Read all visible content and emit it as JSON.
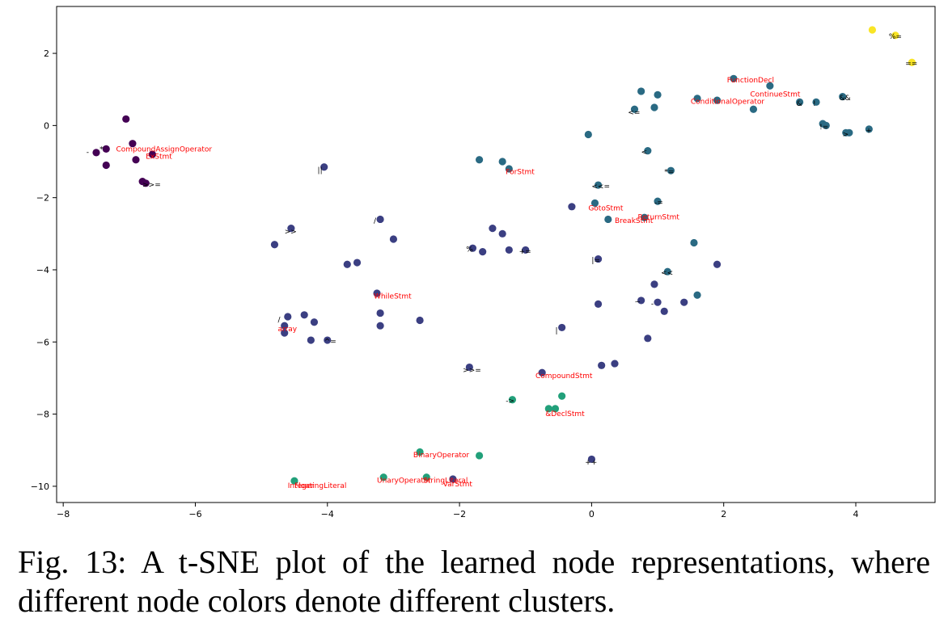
{
  "caption": "Fig. 13: A t-SNE plot of the learned node representations, where different node colors denote different clusters.",
  "colors": {
    "purple": "#440154",
    "indigo": "#3b3f82",
    "teal": "#2a6a83",
    "green": "#22a07a",
    "yellow": "#f9e526",
    "label_red": "#ff0000",
    "label_black": "#000000"
  },
  "chart_data": {
    "type": "scatter",
    "title": "",
    "xlabel": "",
    "ylabel": "",
    "xlim": [
      -8.1,
      5.2
    ],
    "ylim": [
      -10.45,
      3.3
    ],
    "xticks": [
      -8,
      -6,
      -4,
      -2,
      0,
      2,
      4
    ],
    "yticks": [
      -10,
      -8,
      -6,
      -4,
      -2,
      0,
      2
    ],
    "grid": false,
    "legend": "none",
    "points": [
      {
        "x": -7.05,
        "y": 0.18,
        "c": "purple"
      },
      {
        "x": -6.95,
        "y": -0.5,
        "c": "purple"
      },
      {
        "x": -7.5,
        "y": -0.75,
        "c": "purple"
      },
      {
        "x": -7.35,
        "y": -0.65,
        "c": "purple"
      },
      {
        "x": -7.35,
        "y": -1.1,
        "c": "purple"
      },
      {
        "x": -6.9,
        "y": -0.95,
        "c": "purple"
      },
      {
        "x": -6.65,
        "y": -0.8,
        "c": "purple"
      },
      {
        "x": -6.8,
        "y": -1.55,
        "c": "purple"
      },
      {
        "x": -6.75,
        "y": -1.6,
        "c": "purple"
      },
      {
        "x": -4.05,
        "y": -1.15,
        "c": "indigo"
      },
      {
        "x": -4.55,
        "y": -2.85,
        "c": "indigo"
      },
      {
        "x": -4.8,
        "y": -3.3,
        "c": "indigo"
      },
      {
        "x": -3.2,
        "y": -2.6,
        "c": "indigo"
      },
      {
        "x": -3.0,
        "y": -3.15,
        "c": "indigo"
      },
      {
        "x": -3.7,
        "y": -3.85,
        "c": "indigo"
      },
      {
        "x": -3.55,
        "y": -3.8,
        "c": "indigo"
      },
      {
        "x": -3.25,
        "y": -4.65,
        "c": "indigo"
      },
      {
        "x": -3.2,
        "y": -5.2,
        "c": "indigo"
      },
      {
        "x": -3.2,
        "y": -5.55,
        "c": "indigo"
      },
      {
        "x": -4.6,
        "y": -5.3,
        "c": "indigo"
      },
      {
        "x": -4.65,
        "y": -5.55,
        "c": "indigo"
      },
      {
        "x": -4.65,
        "y": -5.75,
        "c": "indigo"
      },
      {
        "x": -4.35,
        "y": -5.25,
        "c": "indigo"
      },
      {
        "x": -4.2,
        "y": -5.45,
        "c": "indigo"
      },
      {
        "x": -4.25,
        "y": -5.95,
        "c": "indigo"
      },
      {
        "x": -4.0,
        "y": -5.95,
        "c": "indigo"
      },
      {
        "x": -2.6,
        "y": -5.4,
        "c": "indigo"
      },
      {
        "x": -1.8,
        "y": -3.4,
        "c": "indigo"
      },
      {
        "x": -1.65,
        "y": -3.5,
        "c": "indigo"
      },
      {
        "x": -1.5,
        "y": -2.85,
        "c": "indigo"
      },
      {
        "x": -1.35,
        "y": -3.0,
        "c": "indigo"
      },
      {
        "x": -1.25,
        "y": -3.45,
        "c": "indigo"
      },
      {
        "x": -1.0,
        "y": -3.45,
        "c": "indigo"
      },
      {
        "x": -0.3,
        "y": -2.25,
        "c": "indigo"
      },
      {
        "x": 0.1,
        "y": -3.7,
        "c": "indigo"
      },
      {
        "x": 0.1,
        "y": -4.95,
        "c": "indigo"
      },
      {
        "x": -0.45,
        "y": -5.6,
        "c": "indigo"
      },
      {
        "x": 0.75,
        "y": -4.85,
        "c": "indigo"
      },
      {
        "x": 0.95,
        "y": -4.4,
        "c": "indigo"
      },
      {
        "x": 1.0,
        "y": -4.9,
        "c": "indigo"
      },
      {
        "x": 1.1,
        "y": -5.15,
        "c": "indigo"
      },
      {
        "x": 1.4,
        "y": -4.9,
        "c": "indigo"
      },
      {
        "x": 1.9,
        "y": -3.85,
        "c": "indigo"
      },
      {
        "x": 0.85,
        "y": -5.9,
        "c": "indigo"
      },
      {
        "x": 0.15,
        "y": -6.65,
        "c": "indigo"
      },
      {
        "x": 0.35,
        "y": -6.6,
        "c": "indigo"
      },
      {
        "x": -0.75,
        "y": -6.85,
        "c": "indigo"
      },
      {
        "x": -1.85,
        "y": -6.7,
        "c": "indigo"
      },
      {
        "x": 0.0,
        "y": -9.25,
        "c": "indigo"
      },
      {
        "x": -2.1,
        "y": -9.8,
        "c": "indigo"
      },
      {
        "x": -0.05,
        "y": -0.25,
        "c": "teal"
      },
      {
        "x": -1.7,
        "y": -0.95,
        "c": "teal"
      },
      {
        "x": -1.35,
        "y": -1.0,
        "c": "teal"
      },
      {
        "x": -1.25,
        "y": -1.2,
        "c": "teal"
      },
      {
        "x": 0.1,
        "y": -1.65,
        "c": "teal"
      },
      {
        "x": 0.05,
        "y": -2.15,
        "c": "teal"
      },
      {
        "x": 0.25,
        "y": -2.6,
        "c": "teal"
      },
      {
        "x": 0.8,
        "y": -2.55,
        "c": "teal"
      },
      {
        "x": 1.0,
        "y": -2.1,
        "c": "teal"
      },
      {
        "x": 0.85,
        "y": -0.7,
        "c": "teal"
      },
      {
        "x": 1.2,
        "y": -1.25,
        "c": "teal"
      },
      {
        "x": 1.55,
        "y": -3.25,
        "c": "teal"
      },
      {
        "x": 1.15,
        "y": -4.05,
        "c": "teal"
      },
      {
        "x": 1.6,
        "y": -4.7,
        "c": "teal"
      },
      {
        "x": 0.65,
        "y": 0.45,
        "c": "teal"
      },
      {
        "x": 0.75,
        "y": 0.95,
        "c": "teal"
      },
      {
        "x": 0.95,
        "y": 0.5,
        "c": "teal"
      },
      {
        "x": 1.0,
        "y": 0.85,
        "c": "teal"
      },
      {
        "x": 1.6,
        "y": 0.75,
        "c": "teal"
      },
      {
        "x": 1.9,
        "y": 0.7,
        "c": "teal"
      },
      {
        "x": 2.15,
        "y": 1.3,
        "c": "teal"
      },
      {
        "x": 2.7,
        "y": 1.1,
        "c": "teal"
      },
      {
        "x": 2.45,
        "y": 0.45,
        "c": "teal"
      },
      {
        "x": 3.15,
        "y": 0.65,
        "c": "teal"
      },
      {
        "x": 3.4,
        "y": 0.65,
        "c": "teal"
      },
      {
        "x": 3.8,
        "y": 0.8,
        "c": "teal"
      },
      {
        "x": 3.5,
        "y": 0.05,
        "c": "teal"
      },
      {
        "x": 3.55,
        "y": 0.0,
        "c": "teal"
      },
      {
        "x": 3.85,
        "y": -0.2,
        "c": "teal"
      },
      {
        "x": 3.9,
        "y": -0.2,
        "c": "teal"
      },
      {
        "x": 4.2,
        "y": -0.1,
        "c": "teal"
      },
      {
        "x": -2.6,
        "y": -9.05,
        "c": "green"
      },
      {
        "x": -1.7,
        "y": -9.15,
        "c": "green"
      },
      {
        "x": -2.5,
        "y": -9.75,
        "c": "green"
      },
      {
        "x": -3.15,
        "y": -9.75,
        "c": "green"
      },
      {
        "x": -4.5,
        "y": -9.85,
        "c": "green"
      },
      {
        "x": -1.2,
        "y": -7.6,
        "c": "green"
      },
      {
        "x": -0.65,
        "y": -7.85,
        "c": "green"
      },
      {
        "x": -0.55,
        "y": -7.85,
        "c": "green"
      },
      {
        "x": -0.45,
        "y": -7.5,
        "c": "green"
      },
      {
        "x": 4.25,
        "y": 2.65,
        "c": "yellow"
      },
      {
        "x": 4.6,
        "y": 2.5,
        "c": "yellow"
      },
      {
        "x": 4.85,
        "y": 1.75,
        "c": "yellow"
      }
    ],
    "annotations": [
      {
        "text": "CompoundAssignOperator",
        "x": -7.2,
        "y": -0.72,
        "color": "red",
        "size": 9
      },
      {
        "text": "ExStmt",
        "x": -6.75,
        "y": -0.92,
        "color": "red",
        "size": 9
      },
      {
        "text": "-",
        "x": -7.65,
        "y": -0.8,
        "color": "black",
        "size": 9
      },
      {
        "text": "*",
        "x": -7.45,
        "y": -0.72,
        "color": "black",
        "size": 9
      },
      {
        "text": ">>=",
        "x": -6.8,
        "y": -1.7,
        "color": "black",
        "size": 9
      },
      {
        "text": "||",
        "x": -4.15,
        "y": -1.3,
        "color": "black",
        "size": 9
      },
      {
        "text": ">>",
        "x": -4.65,
        "y": -3.0,
        "color": "black",
        "size": 9
      },
      {
        "text": "/",
        "x": -3.3,
        "y": -2.7,
        "color": "black",
        "size": 9
      },
      {
        "text": "WhileStmt",
        "x": -3.3,
        "y": -4.8,
        "color": "red",
        "size": 9
      },
      {
        "text": "/",
        "x": -4.75,
        "y": -5.45,
        "color": "black",
        "size": 9
      },
      {
        "text": "array",
        "x": -4.75,
        "y": -5.7,
        "color": "red",
        "size": 9
      },
      {
        "text": "^=",
        "x": -4.05,
        "y": -6.05,
        "color": "black",
        "size": 9
      },
      {
        "text": "%",
        "x": -1.9,
        "y": -3.5,
        "color": "black",
        "size": 9
      },
      {
        "text": "+=",
        "x": -1.1,
        "y": -3.55,
        "color": "black",
        "size": 9
      },
      {
        "text": "ForStmt",
        "x": -1.3,
        "y": -1.35,
        "color": "red",
        "size": 9
      },
      {
        "text": "<<=",
        "x": 0.0,
        "y": -1.75,
        "color": "black",
        "size": 9
      },
      {
        "text": "GotoStmt",
        "x": -0.05,
        "y": -2.35,
        "color": "red",
        "size": 9
      },
      {
        "text": "BreakStmt",
        "x": 0.35,
        "y": -2.7,
        "color": "red",
        "size": 9
      },
      {
        "text": "ReturnStmt",
        "x": 0.7,
        "y": -2.6,
        "color": "red",
        "size": 12
      },
      {
        "text": "-=",
        "x": 0.95,
        "y": -2.2,
        "color": "black",
        "size": 9
      },
      {
        "text": "<",
        "x": 0.75,
        "y": -0.8,
        "color": "black",
        "size": 9
      },
      {
        "text": "*=",
        "x": 1.1,
        "y": -1.35,
        "color": "black",
        "size": 9
      },
      {
        "text": "|=",
        "x": 0.0,
        "y": -3.8,
        "color": "black",
        "size": 9
      },
      {
        "text": "<<",
        "x": 1.05,
        "y": -4.15,
        "color": "black",
        "size": 9
      },
      {
        "text": "~",
        "x": 0.65,
        "y": -4.95,
        "color": "black",
        "size": 9
      },
      {
        "text": "-",
        "x": 0.9,
        "y": -5.0,
        "color": "black",
        "size": 9
      },
      {
        "text": "|",
        "x": -0.55,
        "y": -5.75,
        "color": "black",
        "size": 9
      },
      {
        "text": ">>=",
        "x": -1.95,
        "y": -6.85,
        "color": "black",
        "size": 9
      },
      {
        "text": "CompoundStmt",
        "x": -0.85,
        "y": -7.0,
        "color": "red",
        "size": 9
      },
      {
        "text": "->",
        "x": -1.3,
        "y": -7.7,
        "color": "black",
        "size": 9
      },
      {
        "text": "&DeclStmt",
        "x": -0.7,
        "y": -8.05,
        "color": "red",
        "size": 9
      },
      {
        "text": "BinaryOperator",
        "x": -2.7,
        "y": -9.2,
        "color": "red",
        "size": 9
      },
      {
        "text": "UnaryOperator",
        "x": -3.25,
        "y": -9.9,
        "color": "red",
        "size": 9
      },
      {
        "text": "StringLiteral",
        "x": -2.55,
        "y": -9.9,
        "color": "red",
        "size": 9
      },
      {
        "text": "VarStmt",
        "x": -2.25,
        "y": -10.0,
        "color": "red",
        "size": 9
      },
      {
        "text": "Integer",
        "x": -4.6,
        "y": -10.05,
        "color": "red",
        "size": 9
      },
      {
        "text": "FloatingLiteral",
        "x": -4.5,
        "y": -10.05,
        "color": "red",
        "size": 9
      },
      {
        "text": "++",
        "x": -0.1,
        "y": -9.4,
        "color": "black",
        "size": 9
      },
      {
        "text": "<=",
        "x": 0.55,
        "y": 0.3,
        "color": "black",
        "size": 9
      },
      {
        "text": "FunctionDecl",
        "x": 2.05,
        "y": 1.2,
        "color": "red",
        "size": 9
      },
      {
        "text": "ContinueStmt",
        "x": 2.4,
        "y": 0.8,
        "color": "red",
        "size": 9
      },
      {
        "text": "ConditionalOperator",
        "x": 1.5,
        "y": 0.6,
        "color": "red",
        "size": 9
      },
      {
        "text": "&",
        "x": 3.1,
        "y": 0.55,
        "color": "black",
        "size": 9
      },
      {
        "text": "!",
        "x": 3.35,
        "y": 0.55,
        "color": "black",
        "size": 9
      },
      {
        "text": "&&",
        "x": 3.75,
        "y": 0.7,
        "color": "black",
        "size": 9
      },
      {
        "text": "!=",
        "x": 3.45,
        "y": -0.1,
        "color": "black",
        "size": 9
      },
      {
        "text": ">",
        "x": 3.8,
        "y": -0.3,
        "color": "black",
        "size": 9
      },
      {
        "text": "+",
        "x": 4.15,
        "y": -0.2,
        "color": "black",
        "size": 9
      },
      {
        "text": "%=",
        "x": 4.5,
        "y": 2.4,
        "color": "black",
        "size": 9
      },
      {
        "text": "==",
        "x": 4.75,
        "y": 1.65,
        "color": "black",
        "size": 9
      }
    ]
  }
}
